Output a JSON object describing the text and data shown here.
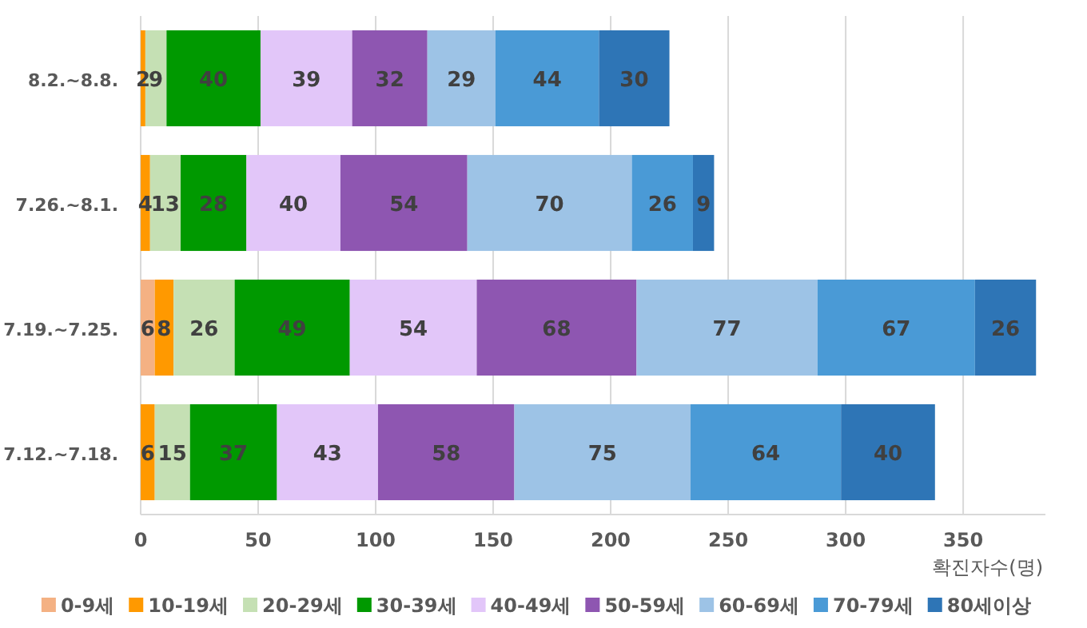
{
  "chart_data": {
    "type": "bar",
    "orientation": "horizontal",
    "stacked": true,
    "data_labels": true,
    "grid": "x",
    "legend": "bottom",
    "categories": [
      "8.2.~8.8.",
      "7.26.~8.1.",
      "7.19.~7.25.",
      "7.12.~7.18."
    ],
    "xlim": [
      0,
      385
    ],
    "xticks": [
      0,
      50,
      100,
      150,
      200,
      250,
      300,
      350
    ],
    "xlabel": "확진자수(명)",
    "series": [
      {
        "name": "0-9세",
        "color": "#f4b183",
        "values": [
          0,
          0,
          6,
          0
        ],
        "value_labels": [
          null,
          null,
          "6",
          null
        ]
      },
      {
        "name": "10-19세",
        "color": "#ff9900",
        "values": [
          2,
          4,
          8,
          6
        ]
      },
      {
        "name": "20-29세",
        "color": "#c5e0b4",
        "values": [
          9,
          13,
          26,
          15
        ]
      },
      {
        "name": "30-39세",
        "color": "#009900",
        "values": [
          40,
          28,
          49,
          37
        ]
      },
      {
        "name": "40-49세",
        "color": "#e2c6f9",
        "values": [
          39,
          40,
          54,
          43
        ]
      },
      {
        "name": "50-59세",
        "color": "#8e56b1",
        "values": [
          32,
          54,
          68,
          58
        ]
      },
      {
        "name": "60-69세",
        "color": "#9dc3e6",
        "values": [
          29,
          70,
          77,
          75
        ]
      },
      {
        "name": "70-79세",
        "color": "#4a9ad6",
        "values": [
          44,
          26,
          67,
          64
        ]
      },
      {
        "name": "80세이상",
        "color": "#2e75b6",
        "values": [
          30,
          9,
          26,
          40
        ]
      }
    ]
  }
}
